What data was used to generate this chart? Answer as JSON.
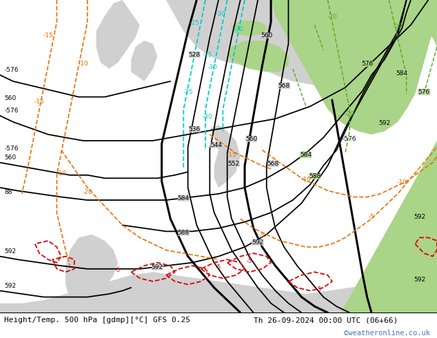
{
  "title_left": "Height/Temp. 500 hPa [gdmp][°C] GFS 0.25",
  "title_right": "Th 26-09-2024 00:00 UTC (06+66)",
  "watermark": "©weatheronline.co.uk",
  "bg_ocean": "#c8c8c8",
  "bg_land": "#d8d8d8",
  "green_color": "#aad488",
  "bottom_bar_color": "#ffffff",
  "watermark_color": "#4477bb",
  "fig_width": 6.34,
  "fig_height": 4.9,
  "dpi": 100
}
